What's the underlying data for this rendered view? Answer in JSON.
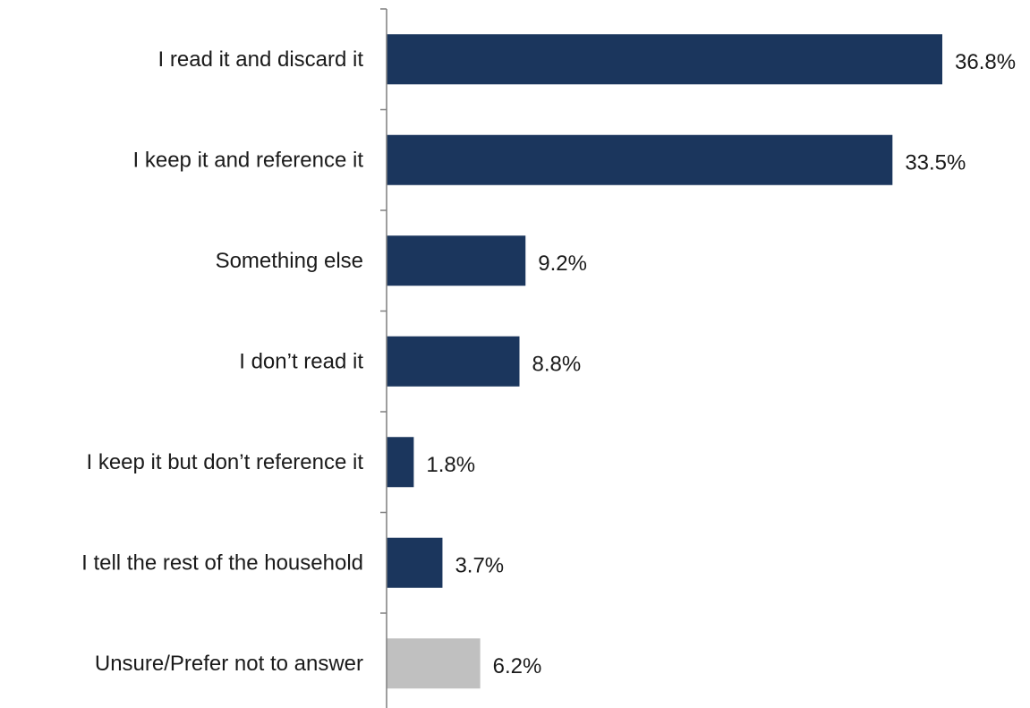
{
  "chart_data": {
    "type": "bar",
    "orientation": "horizontal",
    "categories": [
      "I read it and discard it",
      "I keep it and reference it",
      "Something else",
      "I don’t read it",
      "I keep it but don’t reference it",
      "I tell the rest of the household",
      "Unsure/Prefer not to answer"
    ],
    "values": [
      36.8,
      33.5,
      9.2,
      8.8,
      1.8,
      3.7,
      6.2
    ],
    "value_labels": [
      "36.8%",
      "33.5%",
      "9.2%",
      "8.8%",
      "1.8%",
      "3.7%",
      "6.2%"
    ],
    "bar_colors": [
      "#1b365d",
      "#1b365d",
      "#1b365d",
      "#1b365d",
      "#1b365d",
      "#1b365d",
      "#c0c0c0"
    ],
    "title": "",
    "xlabel": "",
    "ylabel": "",
    "xlim": [
      0,
      40
    ],
    "grid": false,
    "legend": "none"
  }
}
